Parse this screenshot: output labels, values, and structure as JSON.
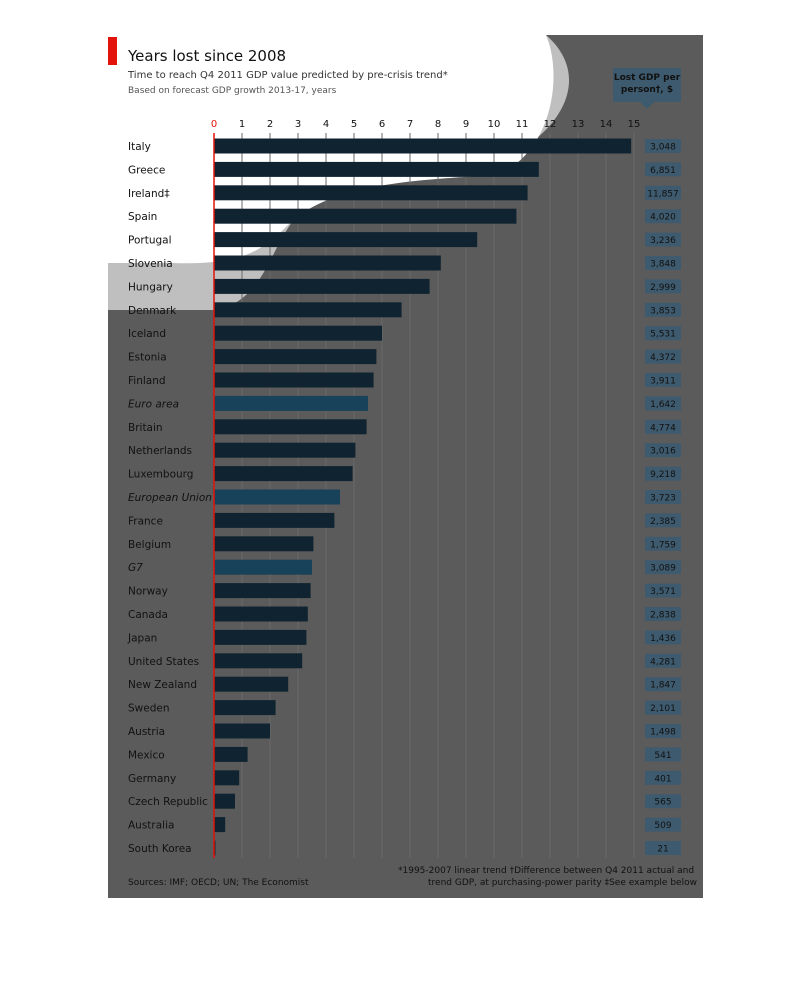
{
  "title": "Years lost since 2008",
  "subtitle": "Time to reach Q4 2011 GDP value predicted by pre-crisis trend*",
  "subtitle2": "Based on forecast GDP growth 2013-17, years",
  "lost_header_line1": "Lost GDP per",
  "lost_header_line2": "person†, $",
  "footnote_left": "Sources: IMF; OECD; UN; The Economist",
  "footnote_right1": "*1995-2007 linear trend   †Difference between Q4 2011 actual and",
  "footnote_right2": "trend GDP, at purchasing-power parity  ‡See example below",
  "colors": {
    "panel": "#5b5b5b",
    "bar": "#0f2430",
    "bar_aggregate": "#17425a",
    "bar_highlight": "#006e95",
    "lost_box": "#3e5a6e",
    "zero_line": "#e3120b"
  },
  "chart_data": {
    "type": "bar",
    "orientation": "horizontal",
    "xlim": [
      0,
      15
    ],
    "xticks": [
      "0",
      "1",
      "2",
      "3",
      "4",
      "5",
      "6",
      "7",
      "8",
      "9",
      "10",
      "11",
      "12",
      "13",
      "14",
      "15"
    ],
    "categories": [
      "Italy",
      "Greece",
      "Ireland‡",
      "Spain",
      "Portugal",
      "Slovenia",
      "Hungary",
      "Denmark",
      "Iceland",
      "Estonia",
      "Finland",
      "Euro area",
      "Britain",
      "Netherlands",
      "Luxembourg",
      "European Union",
      "France",
      "Belgium",
      "G7",
      "Norway",
      "Canada",
      "Japan",
      "United States",
      "New Zealand",
      "Sweden",
      "Austria",
      "Mexico",
      "Germany",
      "Czech Republic",
      "Australia",
      "South Korea"
    ],
    "values": [
      14.9,
      11.6,
      11.2,
      10.8,
      9.4,
      8.1,
      7.7,
      6.7,
      6.0,
      5.8,
      5.7,
      5.5,
      5.45,
      5.05,
      4.95,
      4.5,
      4.3,
      3.55,
      3.5,
      3.45,
      3.35,
      3.3,
      3.15,
      2.65,
      2.2,
      2.0,
      1.2,
      0.9,
      0.75,
      0.4,
      0.05
    ],
    "lost_gdp": [
      "3,048",
      "6,851",
      "11,857",
      "4,020",
      "3,236",
      "3,848",
      "2,999",
      "3,853",
      "5,531",
      "4,372",
      "3,911",
      "1,642",
      "4,774",
      "3,016",
      "9,218",
      "3,723",
      "2,385",
      "1,759",
      "3,089",
      "3,571",
      "2,838",
      "1,436",
      "4,281",
      "1,847",
      "2,101",
      "1,498",
      "541",
      "401",
      "565",
      "509",
      "21"
    ],
    "aggregates": [
      "Euro area",
      "European Union",
      "G7"
    ]
  }
}
